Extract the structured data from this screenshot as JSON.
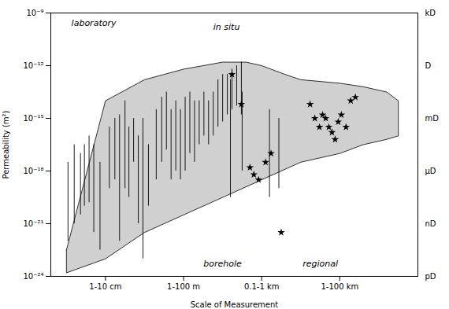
{
  "chart_data": {
    "type": "range",
    "xlabel": "Scale of Measurement",
    "ylabel": "Permeability (m²)",
    "log": "y",
    "grid": false,
    "xlim": [
      0.3,
      5.0
    ],
    "ylim": [
      1e-24,
      1e-09
    ],
    "xticks": [
      {
        "value": 1,
        "label": "1-10 cm"
      },
      {
        "value": 2,
        "label": "1-100 m"
      },
      {
        "value": 3,
        "label": "0.1-1 km"
      },
      {
        "value": 4,
        "label": "1-100 km"
      }
    ],
    "yticks": [
      {
        "value": 1e-24,
        "label": "10⁻²⁴"
      },
      {
        "value": 1e-21,
        "label": "10⁻²¹"
      },
      {
        "value": 1e-18,
        "label": "10⁻¹⁸"
      },
      {
        "value": 1e-15,
        "label": "10⁻¹⁵"
      },
      {
        "value": 1e-12,
        "label": "10⁻¹²"
      },
      {
        "value": 1e-09,
        "label": "10⁻⁹"
      }
    ],
    "y2lim": [
      1e-24,
      1e-09
    ],
    "y2ticks": [
      {
        "value": 1e-09,
        "label": "kD"
      },
      {
        "value": 1e-12,
        "label": "D"
      },
      {
        "value": 1e-15,
        "label": "mD"
      },
      {
        "value": 1e-18,
        "label": "μD"
      },
      {
        "value": 1e-21,
        "label": "nD"
      },
      {
        "value": 1e-24,
        "label": "pD"
      }
    ],
    "band": {
      "color": "#d0d0d0",
      "edge_color": "#000000",
      "top": {
        "x": [
          0.5,
          1.0,
          1.5,
          2.0,
          2.5,
          2.8,
          3.0,
          3.3,
          3.5,
          4.0,
          4.3,
          4.6,
          4.75
        ],
        "y": [
          3.1622776601683793e-23,
          1e-14,
          1.5848931924611137e-13,
          6.309573444801933e-13,
          1.5848931924611136e-12,
          1.5848931924611136e-12,
          1e-12,
          3.1622776601683797e-13,
          1.5848931924611137e-13,
          1e-13,
          6.309573444801933e-14,
          3.1622776601683796e-14,
          1e-14
        ]
      },
      "bottom": {
        "x": [
          0.5,
          1.0,
          1.5,
          2.0,
          2.5,
          3.0,
          3.5,
          4.0,
          4.3,
          4.6,
          4.75
        ],
        "y": [
          1.5848931924611136e-24,
          1e-23,
          3.1622776601683793e-22,
          3.1622776601683796e-21,
          3.162277660168379e-20,
          3.1622776601683796e-19,
          3.1622776601683795e-18,
          1e-17,
          3.1622776601683796e-17,
          6.309573444801933e-17,
          1e-16
        ]
      }
    },
    "ranges_laboratory": {
      "color": "#000000",
      "x": [
        0.52,
        0.6,
        0.68,
        0.73,
        0.79,
        0.85,
        0.93,
        1.05,
        1.12,
        1.18,
        1.25,
        1.3,
        1.36,
        1.42,
        1.48,
        1.55,
        1.65,
        1.72,
        1.78,
        1.84,
        1.9,
        1.96,
        2.02,
        2.08,
        2.14,
        2.2,
        2.26,
        2.32,
        2.38,
        2.44,
        2.5,
        2.56,
        2.62,
        2.68,
        2.74
      ],
      "y_top": [
        3.1622776601683795e-18,
        3.1622776601683796e-17,
        1e-17,
        3.1622776601683796e-17,
        1e-16,
        3.1622776601683796e-17,
        3.1622776601683795e-18,
        3.1622776601683793e-16,
        1e-15,
        1.5848931924611135e-15,
        1e-14,
        3.1622776601683793e-16,
        1e-15,
        1e-16,
        1e-15,
        3.1622776601683796e-17,
        3.1622776601683794e-15,
        1.5848931924611135e-14,
        3.1622776601683796e-14,
        3.1622776601683794e-15,
        1e-14,
        3.1622776601683794e-15,
        1.5848931924611135e-14,
        3.1622776601683796e-14,
        1e-14,
        1e-14,
        3.1622776601683796e-14,
        1e-14,
        3.1622776601683796e-14,
        1.5848931924611137e-13,
        3.1622776601683797e-13,
        3.1622776601683797e-13,
        6.309573444801933e-13,
        1e-12,
        1.5848931924611136e-12
      ],
      "y_bottom": [
        1e-22,
        1e-21,
        3.1622776601683796e-21,
        1e-20,
        1.5848931924611135e-20,
        3.1622776601683793e-22,
        3.1622776601683793e-23,
        1e-19,
        3.1622776601683796e-19,
        1e-22,
        1e-19,
        3.162277660168379e-20,
        3.1622776601683795e-18,
        1e-21,
        1e-23,
        1e-20,
        3.1622776601683796e-19,
        3.1622776601683795e-18,
        1.5848931924611135e-17,
        3.1622776601683796e-19,
        1e-18,
        3.1622776601683796e-19,
        1e-18,
        1e-17,
        3.1622776601683795e-18,
        3.1622776601683796e-17,
        1e-16,
        3.1622776601683796e-17,
        1e-16,
        3.1622776601683793e-16,
        6.309573444801933e-16,
        1.5848931924611135e-15,
        3.1622776601683794e-15,
        5.011872336272722e-15,
        1.5848931924611135e-15
      ]
    },
    "ranges_in_situ": {
      "color": "#000000",
      "x": [
        2.6,
        2.75,
        3.1,
        3.22
      ],
      "y_top": [
        1.5848931924611137e-13,
        3.1622776601683796e-14,
        3.1622776601683794e-15,
        1e-15
      ],
      "y_bottom": [
        3.162277660168379e-20,
        1e-18,
        3.162277660168379e-20,
        1e-19
      ]
    },
    "points_in_situ": {
      "color": "#000000",
      "marker": "star",
      "x": [
        2.62,
        2.74,
        2.85,
        2.9,
        2.96,
        3.05,
        3.12,
        3.25,
        3.62,
        3.68,
        3.74,
        3.78,
        3.82,
        3.86,
        3.9,
        3.94,
        3.98,
        4.02,
        4.08,
        4.14,
        4.2
      ],
      "y": [
        3.1622776601683797e-13,
        6.309573444801933e-15,
        1.5848931924611136e-18,
        6.309573444801933e-19,
        3.1622776601683796e-19,
        3.1622776601683795e-18,
        1e-17,
        3.1622776601683793e-22,
        6.309573444801933e-15,
        1e-15,
        3.1622776601683793e-16,
        1.5848931924611135e-15,
        1e-15,
        3.1622776601683793e-16,
        1.5848931924611136e-16,
        6.309573444801933e-17,
        6.309573444801933e-16,
        1.5848931924611135e-15,
        3.1622776601683793e-16,
        1e-14,
        1.5848931924611135e-14
      ]
    },
    "annotations": [
      {
        "text": "laboratory",
        "x": 0.85,
        "y": 2.51188643150958e-10
      },
      {
        "text": "in situ",
        "x": 2.55,
        "y": 1.5848931924611137e-10
      },
      {
        "text": "borehole",
        "x": 2.5,
        "y": 5.011872336272722e-24
      },
      {
        "text": "regional",
        "x": 3.75,
        "y": 5.011872336272722e-24
      }
    ]
  }
}
